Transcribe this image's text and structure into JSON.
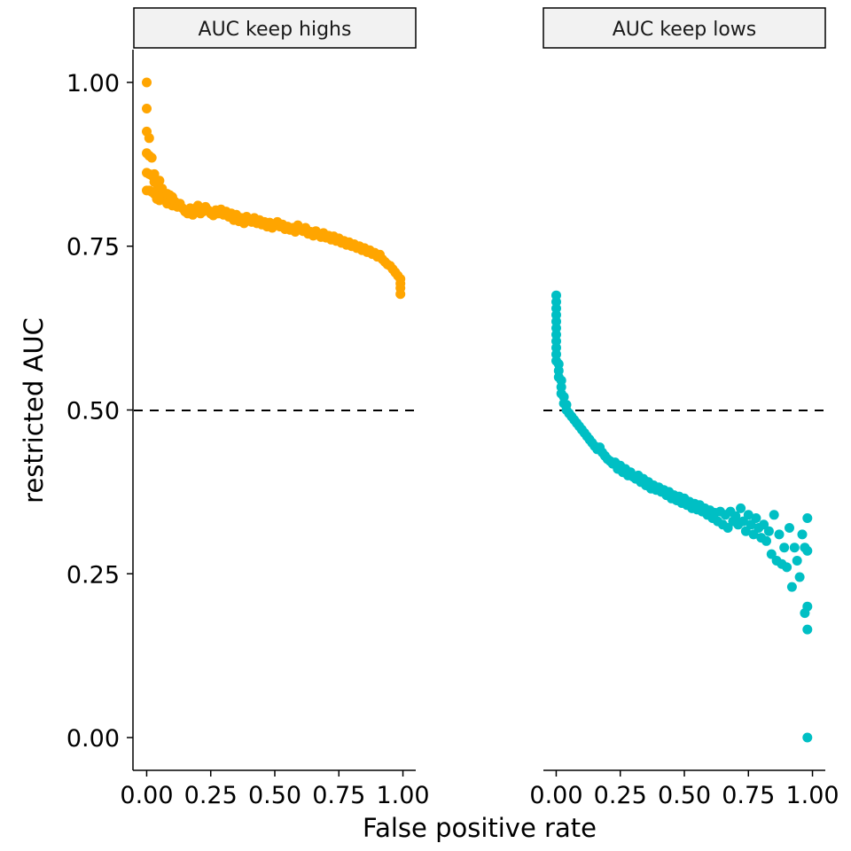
{
  "chart_data": {
    "type": "scatter",
    "xlabel": "False positive rate",
    "ylabel": "restricted AUC",
    "ylim": [
      -0.05,
      1.05
    ],
    "xlim": [
      -0.05,
      1.05
    ],
    "y_ticks": [
      {
        "value": 0.0,
        "label": "0.00"
      },
      {
        "value": 0.25,
        "label": "0.25"
      },
      {
        "value": 0.5,
        "label": "0.50"
      },
      {
        "value": 0.75,
        "label": "0.75"
      },
      {
        "value": 1.0,
        "label": "1.00"
      }
    ],
    "x_ticks": [
      {
        "value": 0.0,
        "label": "0.00"
      },
      {
        "value": 0.25,
        "label": "0.25"
      },
      {
        "value": 0.5,
        "label": "0.50"
      },
      {
        "value": 0.75,
        "label": "0.75"
      },
      {
        "value": 1.0,
        "label": "1.00"
      }
    ],
    "reference_line": {
      "y": 0.5,
      "style": "dashed",
      "color": "#000000"
    },
    "grid": false,
    "legend": "none",
    "panels": [
      {
        "strip": "AUC keep highs",
        "color": "#FFA500",
        "points": [
          [
            0.0,
            1.0
          ],
          [
            0.0,
            0.96
          ],
          [
            0.0,
            0.925
          ],
          [
            0.01,
            0.915
          ],
          [
            0.0,
            0.892
          ],
          [
            0.01,
            0.888
          ],
          [
            0.02,
            0.885
          ],
          [
            0.0,
            0.862
          ],
          [
            0.01,
            0.86
          ],
          [
            0.02,
            0.858
          ],
          [
            0.03,
            0.86
          ],
          [
            0.03,
            0.848
          ],
          [
            0.04,
            0.845
          ],
          [
            0.05,
            0.85
          ],
          [
            0.0,
            0.835
          ],
          [
            0.01,
            0.835
          ],
          [
            0.02,
            0.833
          ],
          [
            0.03,
            0.83
          ],
          [
            0.04,
            0.832
          ],
          [
            0.05,
            0.835
          ],
          [
            0.06,
            0.838
          ],
          [
            0.04,
            0.822
          ],
          [
            0.05,
            0.82
          ],
          [
            0.06,
            0.825
          ],
          [
            0.07,
            0.822
          ],
          [
            0.08,
            0.83
          ],
          [
            0.09,
            0.828
          ],
          [
            0.1,
            0.825
          ],
          [
            0.08,
            0.815
          ],
          [
            0.1,
            0.812
          ],
          [
            0.11,
            0.818
          ],
          [
            0.12,
            0.81
          ],
          [
            0.13,
            0.815
          ],
          [
            0.14,
            0.808
          ],
          [
            0.15,
            0.803
          ],
          [
            0.16,
            0.8
          ],
          [
            0.17,
            0.808
          ],
          [
            0.18,
            0.798
          ],
          [
            0.19,
            0.806
          ],
          [
            0.2,
            0.812
          ],
          [
            0.21,
            0.8
          ],
          [
            0.22,
            0.803
          ],
          [
            0.23,
            0.81
          ],
          [
            0.24,
            0.805
          ],
          [
            0.25,
            0.8
          ],
          [
            0.26,
            0.797
          ],
          [
            0.27,
            0.805
          ],
          [
            0.28,
            0.8
          ],
          [
            0.29,
            0.806
          ],
          [
            0.3,
            0.798
          ],
          [
            0.31,
            0.803
          ],
          [
            0.32,
            0.795
          ],
          [
            0.33,
            0.8
          ],
          [
            0.34,
            0.79
          ],
          [
            0.35,
            0.798
          ],
          [
            0.36,
            0.788
          ],
          [
            0.37,
            0.793
          ],
          [
            0.38,
            0.785
          ],
          [
            0.39,
            0.795
          ],
          [
            0.4,
            0.79
          ],
          [
            0.41,
            0.787
          ],
          [
            0.42,
            0.793
          ],
          [
            0.43,
            0.785
          ],
          [
            0.44,
            0.79
          ],
          [
            0.45,
            0.783
          ],
          [
            0.46,
            0.787
          ],
          [
            0.47,
            0.78
          ],
          [
            0.48,
            0.786
          ],
          [
            0.49,
            0.778
          ],
          [
            0.5,
            0.784
          ],
          [
            0.51,
            0.787
          ],
          [
            0.52,
            0.78
          ],
          [
            0.53,
            0.783
          ],
          [
            0.54,
            0.776
          ],
          [
            0.55,
            0.78
          ],
          [
            0.56,
            0.775
          ],
          [
            0.57,
            0.778
          ],
          [
            0.58,
            0.772
          ],
          [
            0.59,
            0.782
          ],
          [
            0.6,
            0.776
          ],
          [
            0.61,
            0.773
          ],
          [
            0.62,
            0.778
          ],
          [
            0.63,
            0.769
          ],
          [
            0.64,
            0.772
          ],
          [
            0.65,
            0.766
          ],
          [
            0.66,
            0.773
          ],
          [
            0.67,
            0.768
          ],
          [
            0.68,
            0.764
          ],
          [
            0.69,
            0.77
          ],
          [
            0.7,
            0.763
          ],
          [
            0.71,
            0.766
          ],
          [
            0.72,
            0.76
          ],
          [
            0.73,
            0.765
          ],
          [
            0.74,
            0.758
          ],
          [
            0.75,
            0.762
          ],
          [
            0.76,
            0.755
          ],
          [
            0.77,
            0.758
          ],
          [
            0.78,
            0.752
          ],
          [
            0.79,
            0.756
          ],
          [
            0.8,
            0.75
          ],
          [
            0.81,
            0.753
          ],
          [
            0.82,
            0.747
          ],
          [
            0.83,
            0.75
          ],
          [
            0.84,
            0.744
          ],
          [
            0.85,
            0.747
          ],
          [
            0.86,
            0.741
          ],
          [
            0.87,
            0.744
          ],
          [
            0.88,
            0.738
          ],
          [
            0.89,
            0.74
          ],
          [
            0.9,
            0.734
          ],
          [
            0.91,
            0.737
          ],
          [
            0.92,
            0.73
          ],
          [
            0.93,
            0.726
          ],
          [
            0.94,
            0.722
          ],
          [
            0.95,
            0.72
          ],
          [
            0.96,
            0.715
          ],
          [
            0.97,
            0.71
          ],
          [
            0.98,
            0.705
          ],
          [
            0.99,
            0.7
          ],
          [
            0.99,
            0.693
          ],
          [
            0.99,
            0.686
          ],
          [
            0.99,
            0.677
          ]
        ]
      },
      {
        "strip": "AUC keep lows",
        "color": "#00BFC4",
        "points": [
          [
            0.0,
            0.675
          ],
          [
            0.0,
            0.665
          ],
          [
            0.0,
            0.655
          ],
          [
            0.0,
            0.645
          ],
          [
            0.0,
            0.635
          ],
          [
            0.0,
            0.625
          ],
          [
            0.0,
            0.615
          ],
          [
            0.0,
            0.605
          ],
          [
            0.0,
            0.595
          ],
          [
            0.0,
            0.585
          ],
          [
            0.0,
            0.575
          ],
          [
            0.01,
            0.57
          ],
          [
            0.01,
            0.56
          ],
          [
            0.01,
            0.55
          ],
          [
            0.02,
            0.545
          ],
          [
            0.02,
            0.535
          ],
          [
            0.02,
            0.525
          ],
          [
            0.03,
            0.52
          ],
          [
            0.03,
            0.51
          ],
          [
            0.04,
            0.508
          ],
          [
            0.04,
            0.5
          ],
          [
            0.05,
            0.495
          ],
          [
            0.06,
            0.49
          ],
          [
            0.07,
            0.485
          ],
          [
            0.08,
            0.48
          ],
          [
            0.09,
            0.475
          ],
          [
            0.1,
            0.47
          ],
          [
            0.11,
            0.465
          ],
          [
            0.12,
            0.46
          ],
          [
            0.13,
            0.455
          ],
          [
            0.14,
            0.45
          ],
          [
            0.15,
            0.445
          ],
          [
            0.16,
            0.44
          ],
          [
            0.17,
            0.443
          ],
          [
            0.18,
            0.435
          ],
          [
            0.19,
            0.43
          ],
          [
            0.2,
            0.425
          ],
          [
            0.21,
            0.422
          ],
          [
            0.22,
            0.418
          ],
          [
            0.23,
            0.42
          ],
          [
            0.24,
            0.41
          ],
          [
            0.25,
            0.415
          ],
          [
            0.26,
            0.405
          ],
          [
            0.27,
            0.41
          ],
          [
            0.28,
            0.4
          ],
          [
            0.29,
            0.405
          ],
          [
            0.3,
            0.398
          ],
          [
            0.31,
            0.395
          ],
          [
            0.32,
            0.4
          ],
          [
            0.33,
            0.39
          ],
          [
            0.34,
            0.395
          ],
          [
            0.35,
            0.385
          ],
          [
            0.36,
            0.39
          ],
          [
            0.37,
            0.38
          ],
          [
            0.38,
            0.385
          ],
          [
            0.39,
            0.378
          ],
          [
            0.4,
            0.382
          ],
          [
            0.41,
            0.375
          ],
          [
            0.42,
            0.378
          ],
          [
            0.43,
            0.37
          ],
          [
            0.44,
            0.375
          ],
          [
            0.45,
            0.365
          ],
          [
            0.46,
            0.37
          ],
          [
            0.47,
            0.362
          ],
          [
            0.48,
            0.368
          ],
          [
            0.49,
            0.358
          ],
          [
            0.5,
            0.365
          ],
          [
            0.51,
            0.355
          ],
          [
            0.52,
            0.36
          ],
          [
            0.53,
            0.35
          ],
          [
            0.54,
            0.357
          ],
          [
            0.55,
            0.348
          ],
          [
            0.56,
            0.355
          ],
          [
            0.57,
            0.345
          ],
          [
            0.58,
            0.35
          ],
          [
            0.59,
            0.34
          ],
          [
            0.6,
            0.347
          ],
          [
            0.61,
            0.335
          ],
          [
            0.62,
            0.343
          ],
          [
            0.63,
            0.33
          ],
          [
            0.64,
            0.345
          ],
          [
            0.65,
            0.325
          ],
          [
            0.66,
            0.34
          ],
          [
            0.67,
            0.32
          ],
          [
            0.68,
            0.345
          ],
          [
            0.69,
            0.33
          ],
          [
            0.7,
            0.338
          ],
          [
            0.71,
            0.325
          ],
          [
            0.72,
            0.35
          ],
          [
            0.73,
            0.33
          ],
          [
            0.74,
            0.315
          ],
          [
            0.75,
            0.34
          ],
          [
            0.76,
            0.325
          ],
          [
            0.77,
            0.31
          ],
          [
            0.78,
            0.335
          ],
          [
            0.79,
            0.32
          ],
          [
            0.8,
            0.305
          ],
          [
            0.81,
            0.325
          ],
          [
            0.82,
            0.3
          ],
          [
            0.83,
            0.315
          ],
          [
            0.84,
            0.28
          ],
          [
            0.85,
            0.34
          ],
          [
            0.86,
            0.27
          ],
          [
            0.87,
            0.31
          ],
          [
            0.88,
            0.265
          ],
          [
            0.89,
            0.29
          ],
          [
            0.9,
            0.26
          ],
          [
            0.91,
            0.32
          ],
          [
            0.92,
            0.23
          ],
          [
            0.93,
            0.29
          ],
          [
            0.94,
            0.27
          ],
          [
            0.95,
            0.245
          ],
          [
            0.96,
            0.31
          ],
          [
            0.97,
            0.29
          ],
          [
            0.97,
            0.19
          ],
          [
            0.98,
            0.335
          ],
          [
            0.98,
            0.2
          ],
          [
            0.98,
            0.165
          ],
          [
            0.98,
            0.285
          ],
          [
            0.98,
            0.0
          ]
        ]
      }
    ]
  }
}
